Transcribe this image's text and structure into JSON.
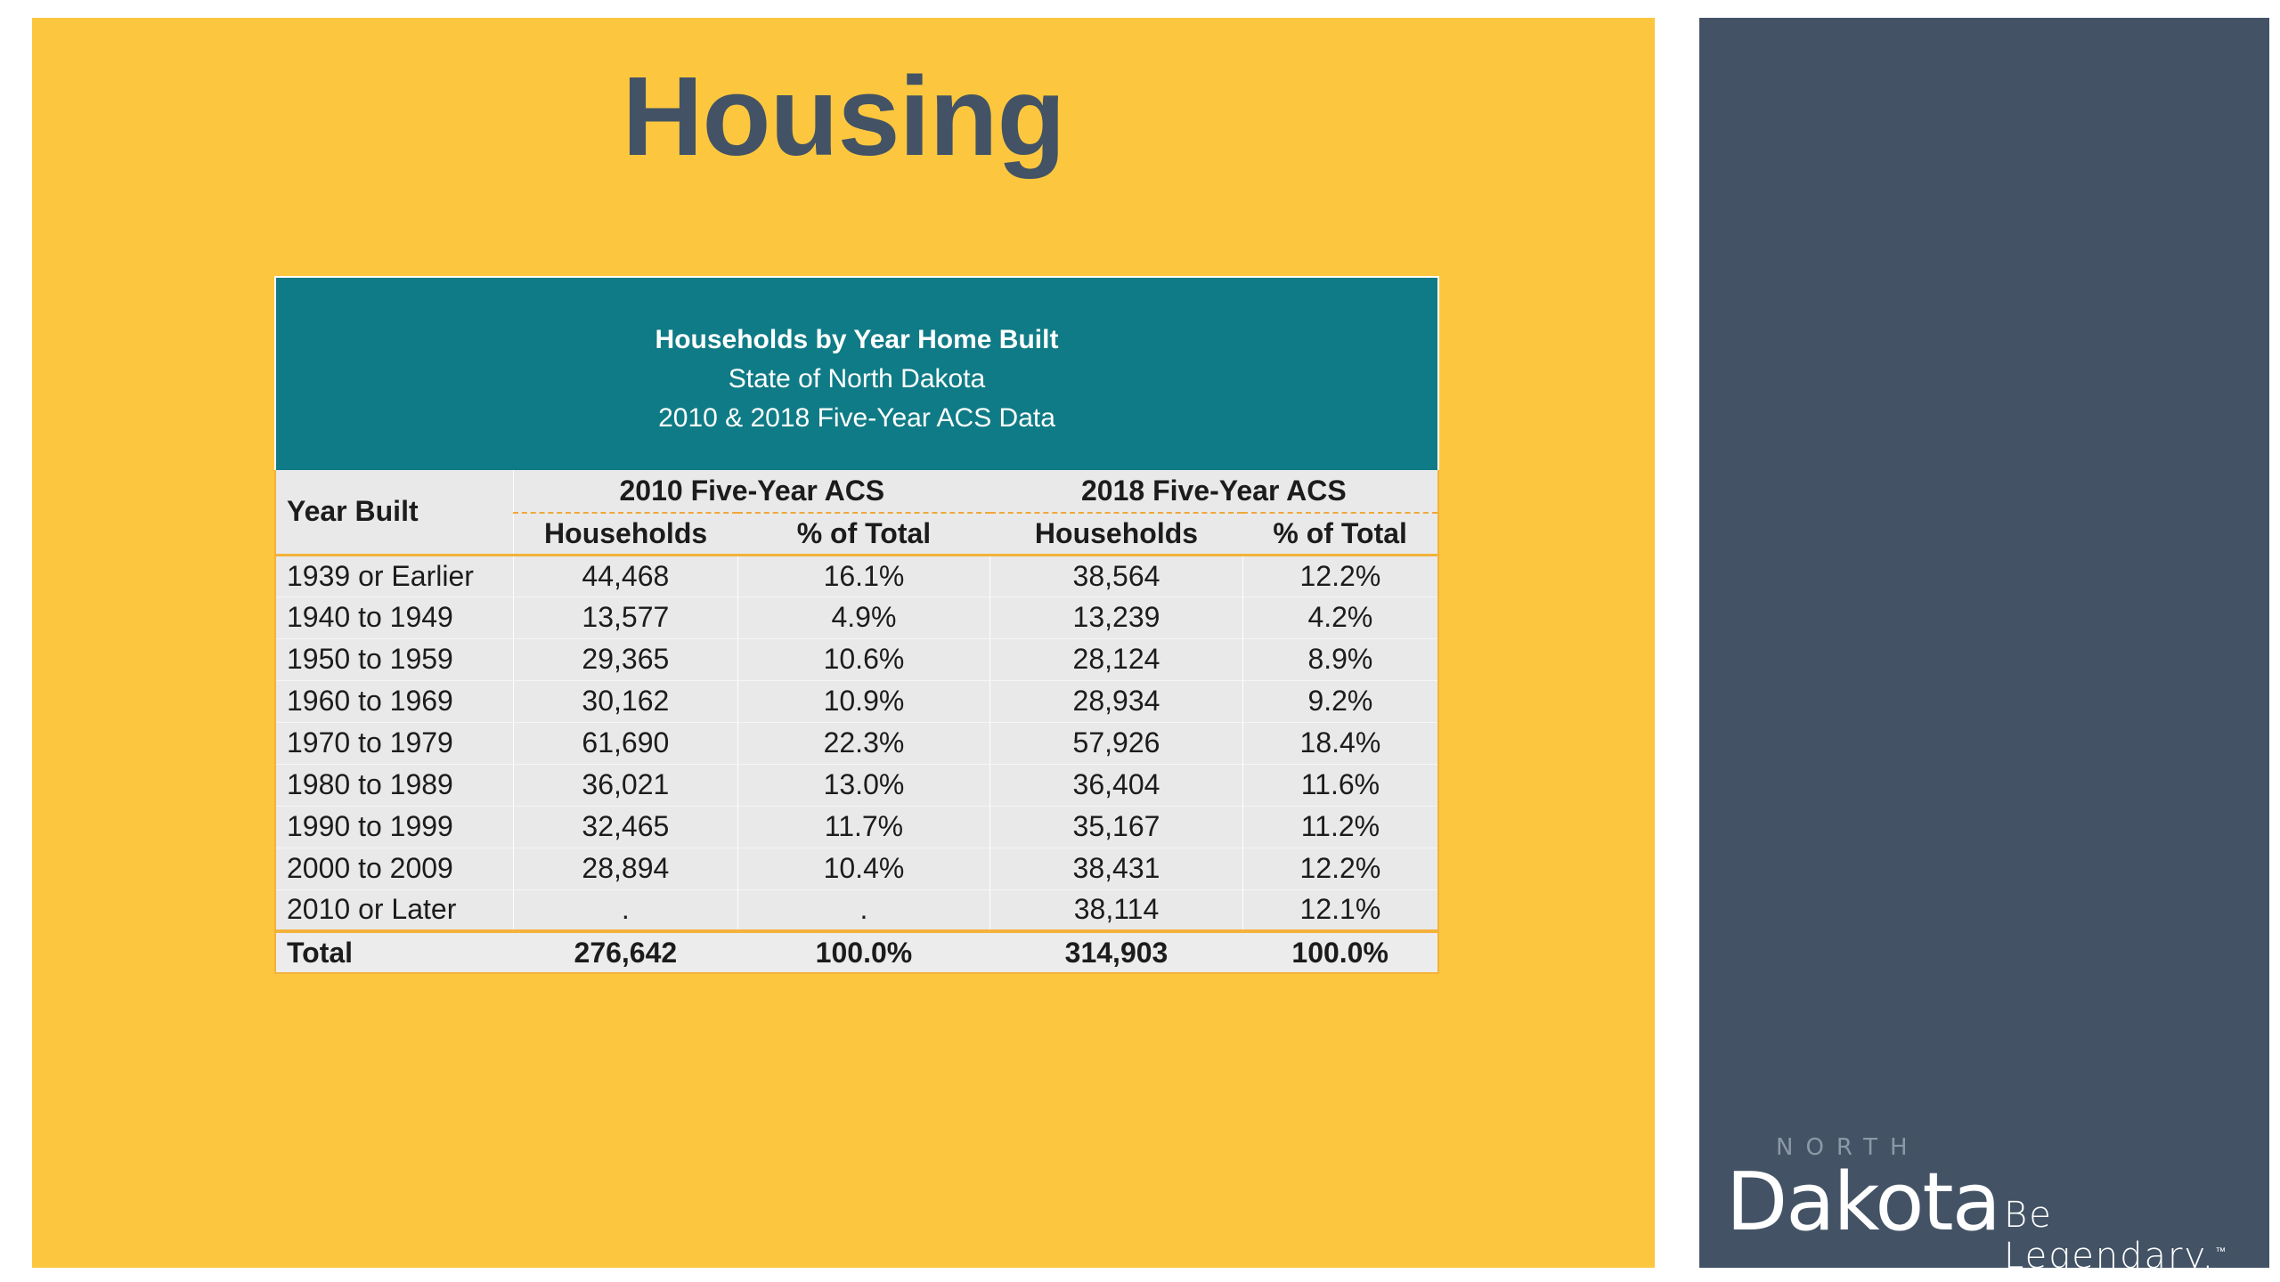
{
  "slide": {
    "title": "Housing"
  },
  "table": {
    "title": "Households by Year Home Built",
    "subtitle": "State of North Dakota",
    "source_line": "2010 & 2018 Five-Year ACS Data",
    "row_header": "Year Built",
    "groups": [
      "2010 Five-Year ACS",
      "2018 Five-Year ACS"
    ],
    "subheaders": [
      "Households",
      "% of Total",
      "Households",
      "% of Total"
    ],
    "rows": [
      {
        "year": "1939 or Earlier",
        "h2010": "44,468",
        "p2010": "16.1%",
        "h2018": "38,564",
        "p2018": "12.2%"
      },
      {
        "year": "1940 to 1949",
        "h2010": "13,577",
        "p2010": "4.9%",
        "h2018": "13,239",
        "p2018": "4.2%"
      },
      {
        "year": "1950 to 1959",
        "h2010": "29,365",
        "p2010": "10.6%",
        "h2018": "28,124",
        "p2018": "8.9%"
      },
      {
        "year": "1960 to 1969",
        "h2010": "30,162",
        "p2010": "10.9%",
        "h2018": "28,934",
        "p2018": "9.2%"
      },
      {
        "year": "1970 to 1979",
        "h2010": "61,690",
        "p2010": "22.3%",
        "h2018": "57,926",
        "p2018": "18.4%"
      },
      {
        "year": "1980 to 1989",
        "h2010": "36,021",
        "p2010": "13.0%",
        "h2018": "36,404",
        "p2018": "11.6%"
      },
      {
        "year": "1990 to 1999",
        "h2010": "32,465",
        "p2010": "11.7%",
        "h2018": "35,167",
        "p2018": "11.2%"
      },
      {
        "year": "2000 to 2009",
        "h2010": "28,894",
        "p2010": "10.4%",
        "h2018": "38,431",
        "p2018": "12.2%"
      },
      {
        "year": "2010 or Later",
        "h2010": ".",
        "p2010": ".",
        "h2018": "38,114",
        "p2018": "12.1%"
      }
    ],
    "total": {
      "label": "Total",
      "h2010": "276,642",
      "p2010": "100.0%",
      "h2018": "314,903",
      "p2018": "100.0%"
    }
  },
  "logo": {
    "north": "NORTH",
    "dakota": "Dakota",
    "tagline": "Be Legendary.",
    "trademark": "™"
  },
  "colors": {
    "main_background": "#fcc73f",
    "side_panel": "#435365",
    "table_header": "#0f7b86",
    "table_body": "#e9e9e9",
    "accent_border": "#f3b23a"
  }
}
